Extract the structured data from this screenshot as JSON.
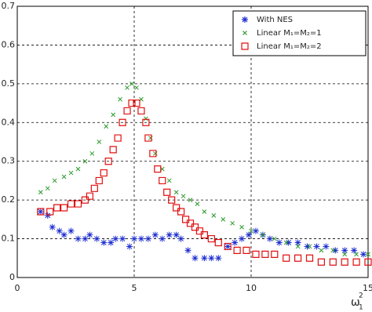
{
  "chart_data": {
    "type": "scatter",
    "x_label": "ω",
    "x_label_sub": "1",
    "x_label_sup": "2",
    "xlim": [
      0,
      15
    ],
    "xticks": [
      0,
      5,
      10,
      15
    ],
    "ylim": [
      0,
      0.7
    ],
    "yticks": [
      0,
      0.1,
      0.2,
      0.3,
      0.4,
      0.5,
      0.6,
      0.7
    ],
    "grid": true,
    "legend": "top-right",
    "series": [
      {
        "name": "With NES",
        "color": "#1f2fd0",
        "marker": "asterisk",
        "x": [
          1,
          1.3,
          1.5,
          1.8,
          2.0,
          2.3,
          2.6,
          2.9,
          3.1,
          3.4,
          3.7,
          4.0,
          4.2,
          4.5,
          4.8,
          5.0,
          5.3,
          5.6,
          5.9,
          6.2,
          6.5,
          6.8,
          7.0,
          7.3,
          7.6,
          8.0,
          8.3,
          8.6,
          9.0,
          9.3,
          9.6,
          9.9,
          10.2,
          10.5,
          10.8,
          11.2,
          11.6,
          12.0,
          12.4,
          12.8,
          13.2,
          13.6,
          14.0,
          14.4,
          14.8
        ],
        "values": [
          0.17,
          0.16,
          0.13,
          0.12,
          0.11,
          0.12,
          0.1,
          0.1,
          0.11,
          0.1,
          0.09,
          0.09,
          0.1,
          0.1,
          0.08,
          0.1,
          0.1,
          0.1,
          0.11,
          0.1,
          0.11,
          0.11,
          0.1,
          0.07,
          0.05,
          0.05,
          0.05,
          0.05,
          0.08,
          0.09,
          0.1,
          0.11,
          0.12,
          0.11,
          0.1,
          0.09,
          0.09,
          0.09,
          0.08,
          0.08,
          0.08,
          0.07,
          0.07,
          0.07,
          0.06
        ]
      },
      {
        "name": "Linear M₁=M₂=1",
        "color": "#2a9a2a",
        "marker": "x",
        "x": [
          1,
          1.3,
          1.6,
          2.0,
          2.3,
          2.6,
          2.9,
          3.2,
          3.5,
          3.8,
          4.1,
          4.4,
          4.7,
          4.9,
          5.1,
          5.3,
          5.5,
          5.7,
          5.9,
          6.2,
          6.5,
          6.8,
          7.1,
          7.4,
          7.7,
          8.0,
          8.4,
          8.8,
          9.2,
          9.6,
          10.0,
          10.5,
          11.0,
          11.5,
          12.0,
          12.5,
          13.0,
          13.5,
          14.0,
          14.5,
          15.0
        ],
        "values": [
          0.22,
          0.23,
          0.25,
          0.26,
          0.27,
          0.28,
          0.3,
          0.32,
          0.35,
          0.39,
          0.42,
          0.46,
          0.49,
          0.5,
          0.49,
          0.46,
          0.41,
          0.36,
          0.32,
          0.28,
          0.25,
          0.22,
          0.21,
          0.2,
          0.19,
          0.17,
          0.16,
          0.15,
          0.14,
          0.13,
          0.12,
          0.11,
          0.1,
          0.09,
          0.08,
          0.08,
          0.07,
          0.07,
          0.06,
          0.06,
          0.06
        ]
      },
      {
        "name": "Linear M₁=M₂=2",
        "color": "#e01010",
        "marker": "square",
        "x": [
          1,
          1.4,
          1.7,
          2.0,
          2.3,
          2.6,
          2.9,
          3.1,
          3.3,
          3.5,
          3.7,
          3.9,
          4.1,
          4.3,
          4.5,
          4.7,
          4.9,
          5.1,
          5.3,
          5.5,
          5.6,
          5.8,
          6.0,
          6.2,
          6.4,
          6.6,
          6.8,
          7.0,
          7.2,
          7.4,
          7.6,
          7.8,
          8.0,
          8.3,
          8.6,
          9.0,
          9.4,
          9.8,
          10.2,
          10.6,
          11.0,
          11.5,
          12.0,
          12.5,
          13.0,
          13.5,
          14.0,
          14.5,
          15.0
        ],
        "values": [
          0.17,
          0.17,
          0.18,
          0.18,
          0.19,
          0.19,
          0.2,
          0.21,
          0.23,
          0.25,
          0.27,
          0.3,
          0.33,
          0.36,
          0.4,
          0.43,
          0.45,
          0.45,
          0.43,
          0.4,
          0.36,
          0.32,
          0.28,
          0.25,
          0.22,
          0.2,
          0.18,
          0.17,
          0.15,
          0.14,
          0.13,
          0.12,
          0.11,
          0.1,
          0.09,
          0.08,
          0.07,
          0.07,
          0.06,
          0.06,
          0.06,
          0.05,
          0.05,
          0.05,
          0.04,
          0.04,
          0.04,
          0.04,
          0.04
        ]
      }
    ]
  }
}
